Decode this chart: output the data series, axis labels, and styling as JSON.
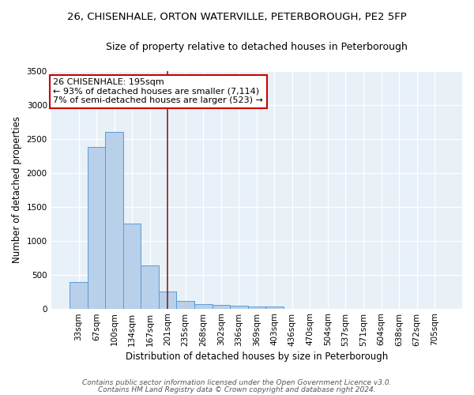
{
  "title": "26, CHISENHALE, ORTON WATERVILLE, PETERBOROUGH, PE2 5FP",
  "subtitle": "Size of property relative to detached houses in Peterborough",
  "xlabel": "Distribution of detached houses by size in Peterborough",
  "ylabel": "Number of detached properties",
  "categories": [
    "33sqm",
    "67sqm",
    "100sqm",
    "134sqm",
    "167sqm",
    "201sqm",
    "235sqm",
    "268sqm",
    "302sqm",
    "336sqm",
    "369sqm",
    "403sqm",
    "436sqm",
    "470sqm",
    "504sqm",
    "537sqm",
    "571sqm",
    "604sqm",
    "638sqm",
    "672sqm",
    "705sqm"
  ],
  "values": [
    390,
    2390,
    2600,
    1250,
    640,
    250,
    110,
    60,
    55,
    40,
    30,
    30,
    0,
    0,
    0,
    0,
    0,
    0,
    0,
    0,
    0
  ],
  "bar_color": "#b8d0ea",
  "bar_edge_color": "#5b9bd5",
  "vline_x_index": 5,
  "vline_color": "#8b1a1a",
  "annotation_line1": "26 CHISENHALE: 195sqm",
  "annotation_line2": "← 93% of detached houses are smaller (7,114)",
  "annotation_line3": "7% of semi-detached houses are larger (523) →",
  "annotation_box_facecolor": "white",
  "annotation_box_edgecolor": "#cc0000",
  "ylim": [
    0,
    3500
  ],
  "yticks": [
    0,
    500,
    1000,
    1500,
    2000,
    2500,
    3000,
    3500
  ],
  "bg_color": "#e8f0f8",
  "grid_color": "white",
  "footer_line1": "Contains HM Land Registry data © Crown copyright and database right 2024.",
  "footer_line2": "Contains public sector information licensed under the Open Government Licence v3.0.",
  "title_fontsize": 9.5,
  "subtitle_fontsize": 9,
  "axis_label_fontsize": 8.5,
  "tick_fontsize": 7.5,
  "annotation_fontsize": 8,
  "footer_fontsize": 6.5
}
